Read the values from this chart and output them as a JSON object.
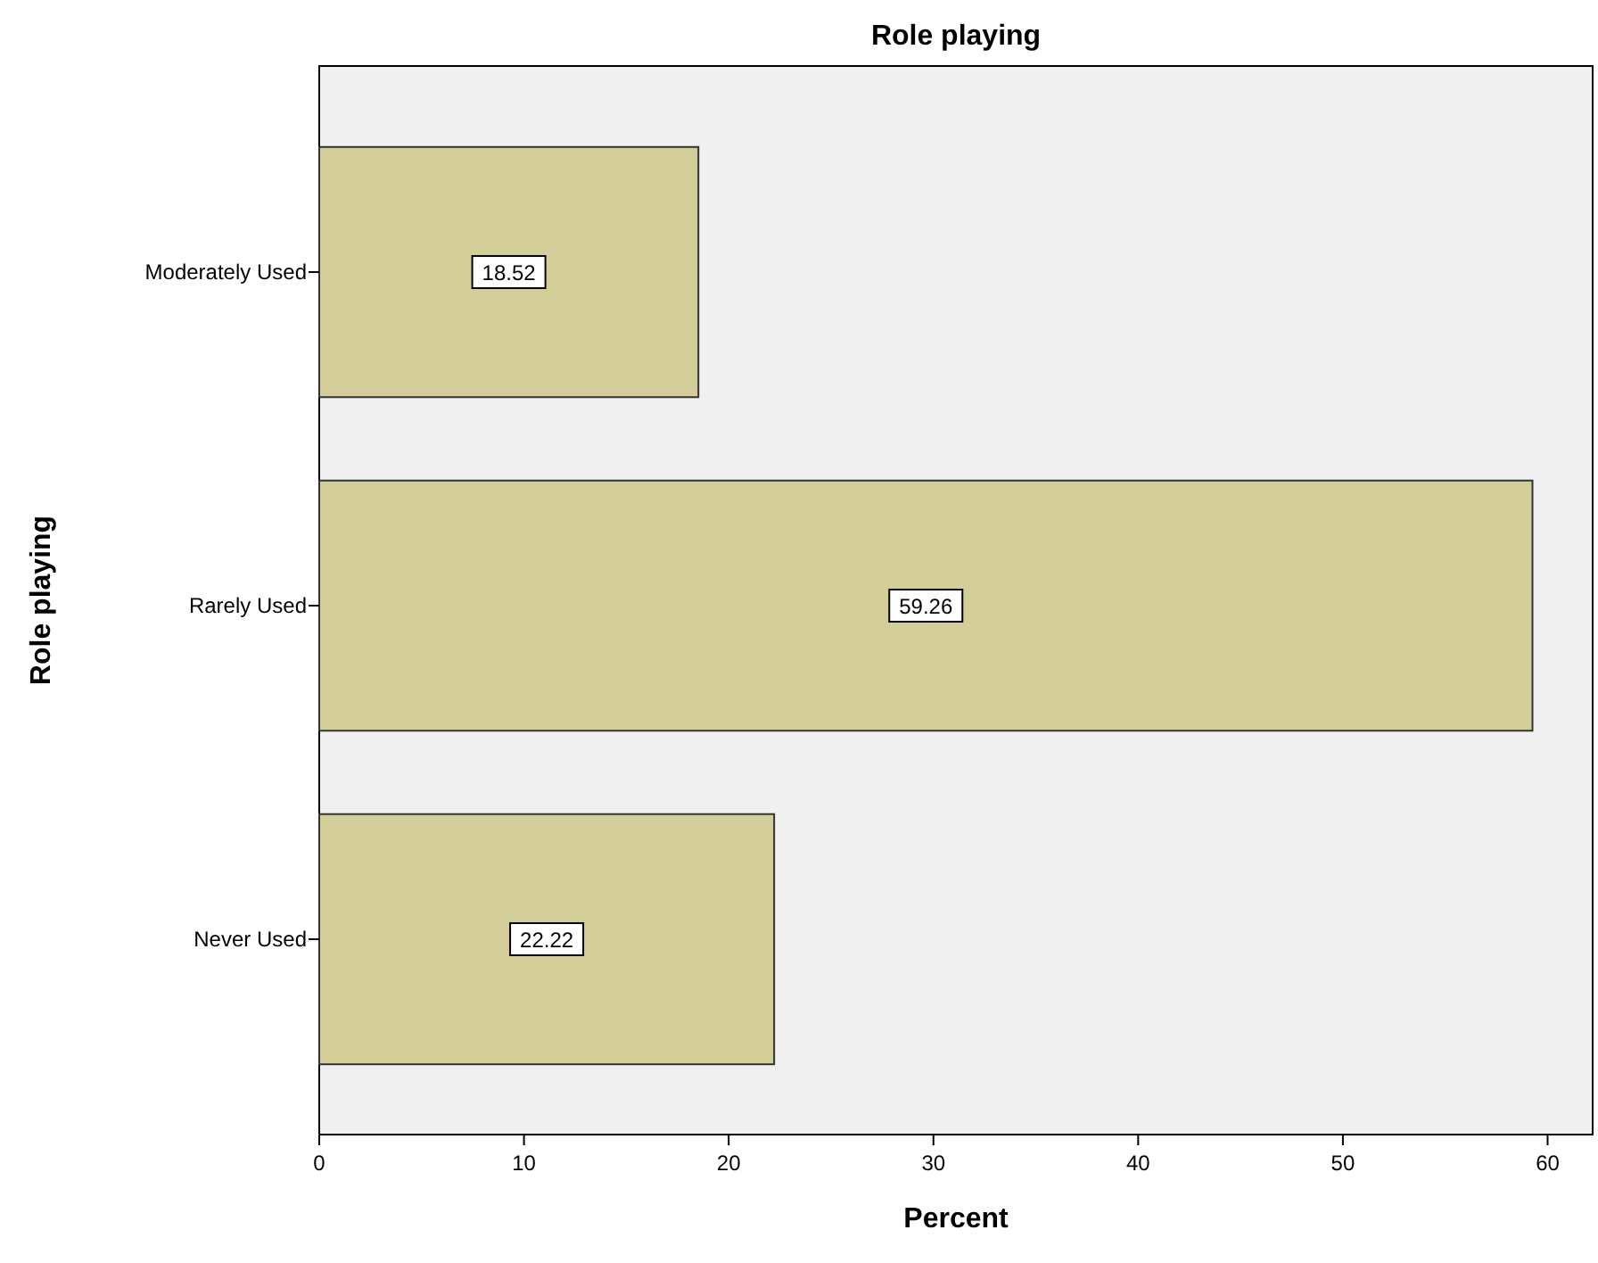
{
  "chart_data": {
    "type": "bar",
    "orientation": "horizontal",
    "title": "Role playing",
    "xlabel": "Percent",
    "ylabel": "Role playing",
    "categories": [
      "Moderately Used",
      "Rarely Used",
      "Never Used"
    ],
    "values": [
      18.52,
      59.26,
      22.22
    ],
    "color": "#d3ce98",
    "data_labels": true,
    "xlim": [
      0,
      62.2
    ],
    "xticks": [
      0,
      10,
      20,
      30,
      40,
      50,
      60
    ],
    "grid": false
  }
}
